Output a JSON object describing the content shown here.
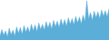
{
  "chart_data": {
    "type": "area",
    "values": [
      1.5,
      4.0,
      1.8,
      3.5,
      1.2,
      4.5,
      2.0,
      3.8,
      1.5,
      5.0,
      2.5,
      4.8,
      2.2,
      5.5,
      3.0,
      5.0,
      2.8,
      6.0,
      3.5,
      5.8,
      3.2,
      6.5,
      4.0,
      6.0,
      3.8,
      7.0,
      4.5,
      6.8,
      4.2,
      7.5,
      5.0,
      7.2,
      4.8,
      8.0,
      5.5,
      7.8,
      5.2,
      8.5,
      6.0,
      8.2,
      5.8,
      9.0,
      6.5,
      8.8,
      6.2,
      9.5,
      7.0,
      15.0,
      8.0,
      10.5,
      7.5,
      11.0,
      8.5,
      10.8,
      8.2,
      11.5,
      9.0,
      11.2,
      8.8,
      12.0
    ],
    "color": "#5aaed8",
    "ylim": [
      0,
      15.3
    ],
    "tick_labels": false
  }
}
